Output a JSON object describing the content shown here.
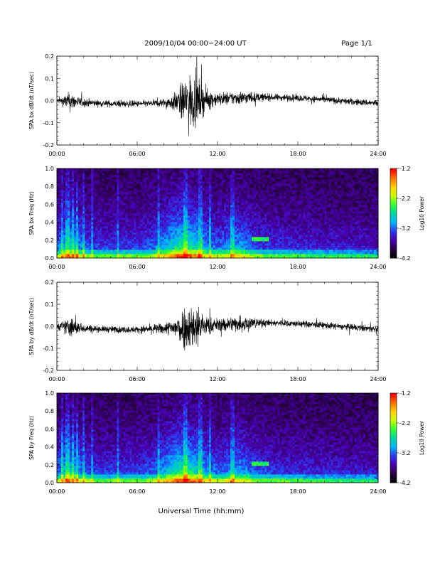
{
  "header": {
    "title": "2009/10/04   00:00−24:00 UT",
    "page": "Page 1/1"
  },
  "footer": {
    "xlabel": "Universal Time (hh:mm)"
  },
  "colors": {
    "trace": "#000000",
    "colormap": [
      "#000000",
      "#2a0046",
      "#4a00b0",
      "#2a3cf0",
      "#00b4ff",
      "#00d8a0",
      "#30ff30",
      "#c8ff00",
      "#ffd000",
      "#ff7000",
      "#ff0000"
    ]
  },
  "chart_data": [
    {
      "type": "line",
      "ylabel": "SPA bx dB/dt (nT/sec)",
      "xlim": [
        0,
        24
      ],
      "ylim": [
        -0.2,
        0.2
      ],
      "xticks": [
        "00:00",
        "06:00",
        "12:00",
        "18:00",
        "24:00"
      ],
      "yticks": [
        "-0.2",
        "-0.1",
        "0.0",
        "0.1",
        "0.2"
      ],
      "activity_profile": {
        "hours": [
          0,
          0.5,
          1,
          1.5,
          2,
          3,
          4,
          5,
          6,
          7,
          8,
          8.5,
          9,
          9.5,
          10,
          10.5,
          11,
          11.5,
          12,
          13,
          14,
          15,
          16,
          17,
          18,
          19,
          20,
          21,
          22,
          23,
          24
        ],
        "amplitude": [
          0.02,
          0.05,
          0.09,
          0.05,
          0.04,
          0.03,
          0.03,
          0.03,
          0.03,
          0.03,
          0.04,
          0.06,
          0.1,
          0.2,
          0.25,
          0.2,
          0.12,
          0.08,
          0.06,
          0.06,
          0.06,
          0.04,
          0.03,
          0.03,
          0.03,
          0.03,
          0.03,
          0.03,
          0.03,
          0.03,
          0.03
        ]
      }
    },
    {
      "type": "heatmap",
      "ylabel": "SPA bx Freq (Hz)",
      "xlim": [
        0,
        24
      ],
      "ylim": [
        0,
        1.0
      ],
      "xticks": [
        "00:00",
        "06:00",
        "12:00",
        "18:00",
        "24:00"
      ],
      "yticks": [
        "0.0",
        "0.2",
        "0.4",
        "0.6",
        "0.8",
        "1.0"
      ],
      "colorbar": {
        "label": "Log10 Power",
        "range": [
          -4.2,
          -1.2
        ],
        "ticks": [
          "-1.2",
          "-2.2",
          "-3.2",
          "-4.2"
        ]
      }
    },
    {
      "type": "line",
      "ylabel": "SPA by dB/dt (nT/sec)",
      "xlim": [
        0,
        24
      ],
      "ylim": [
        -0.2,
        0.2
      ],
      "xticks": [
        "00:00",
        "06:00",
        "12:00",
        "18:00",
        "24:00"
      ],
      "yticks": [
        "-0.2",
        "-0.1",
        "0.0",
        "0.1",
        "0.2"
      ],
      "activity_profile": {
        "hours": [
          0,
          0.5,
          1,
          1.5,
          2,
          3,
          4,
          5,
          6,
          7,
          8,
          8.5,
          9,
          9.5,
          10,
          10.5,
          11,
          11.5,
          12,
          13,
          14,
          15,
          16,
          17,
          18,
          19,
          20,
          21,
          22,
          23,
          24
        ],
        "amplitude": [
          0.03,
          0.05,
          0.1,
          0.06,
          0.04,
          0.03,
          0.03,
          0.03,
          0.03,
          0.04,
          0.05,
          0.07,
          0.12,
          0.2,
          0.2,
          0.2,
          0.1,
          0.07,
          0.06,
          0.07,
          0.08,
          0.04,
          0.03,
          0.03,
          0.03,
          0.03,
          0.03,
          0.03,
          0.03,
          0.03,
          0.03
        ]
      }
    },
    {
      "type": "heatmap",
      "ylabel": "SPA by Freq (Hz)",
      "xlim": [
        0,
        24
      ],
      "ylim": [
        0,
        1.0
      ],
      "xticks": [
        "00:00",
        "06:00",
        "12:00",
        "18:00",
        "24:00"
      ],
      "yticks": [
        "0.0",
        "0.2",
        "0.4",
        "0.6",
        "0.8",
        "1.0"
      ],
      "colorbar": {
        "label": "Log10 Power",
        "range": [
          -4.2,
          -1.2
        ],
        "ticks": [
          "-1.2",
          "-2.2",
          "-3.2",
          "-4.2"
        ]
      }
    }
  ]
}
